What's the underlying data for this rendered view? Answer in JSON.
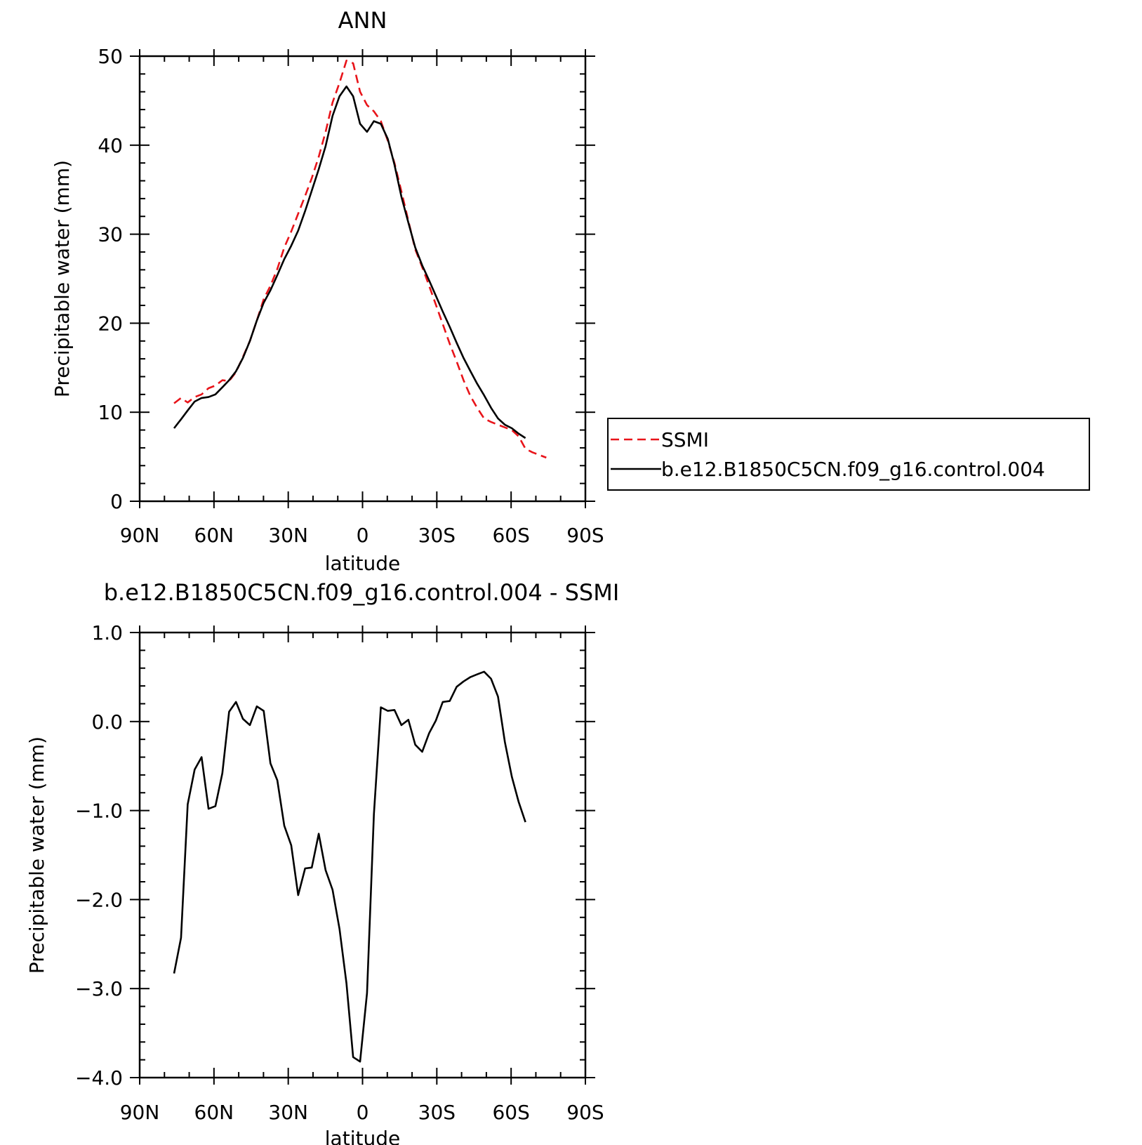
{
  "chart_data": [
    {
      "type": "line",
      "title": "ANN",
      "xlabel": "latitude",
      "ylabel": "Precipitable water (mm)",
      "xlim": [
        90,
        -90
      ],
      "ylim": [
        0,
        50
      ],
      "x_ticks": [
        90,
        60,
        30,
        0,
        -30,
        -60,
        -90
      ],
      "x_tick_labels": [
        "90N",
        "60N",
        "30N",
        "0",
        "30S",
        "60S",
        "90S"
      ],
      "y_ticks": [
        0,
        10,
        20,
        30,
        40,
        50
      ],
      "y_tick_labels": [
        "0",
        "10",
        "20",
        "30",
        "40",
        "50"
      ],
      "legend_position": "right",
      "series": [
        {
          "name": "SSMI",
          "color": "#e8141a",
          "dash": "dashed",
          "x": [
            76.1,
            73.3,
            70.6,
            67.8,
            65.0,
            62.2,
            59.4,
            56.6,
            53.9,
            51.1,
            48.3,
            45.5,
            42.7,
            39.9,
            37.2,
            34.4,
            31.6,
            28.8,
            26.0,
            23.2,
            20.5,
            17.7,
            14.9,
            12.1,
            9.3,
            6.5,
            3.8,
            1.0,
            -1.8,
            -4.6,
            -7.4,
            -10.2,
            -12.9,
            -15.7,
            -18.5,
            -21.3,
            -24.1,
            -26.9,
            -29.6,
            -32.4,
            -35.2,
            -38.0,
            -40.8,
            -43.6,
            -46.3,
            -49.1,
            -51.9,
            -54.7,
            -57.5,
            -60.3,
            -63.0,
            -65.8,
            -68.6,
            -71.4,
            -74.2
          ],
          "y": [
            11.0,
            11.6,
            11.1,
            11.7,
            12.0,
            12.7,
            13.0,
            13.6,
            13.5,
            14.5,
            16.2,
            18.0,
            20.3,
            22.7,
            24.2,
            26.1,
            28.5,
            30.3,
            32.3,
            34.3,
            36.3,
            38.7,
            41.5,
            44.8,
            47.0,
            49.5,
            49.2,
            46.0,
            44.5,
            43.8,
            42.7,
            40.5,
            38.0,
            34.8,
            31.5,
            28.3,
            26.3,
            24.2,
            22.1,
            19.9,
            17.7,
            15.7,
            13.6,
            11.8,
            10.5,
            9.3,
            8.9,
            8.6,
            8.3,
            8.0,
            7.3,
            5.9,
            5.5,
            5.2,
            4.9
          ]
        },
        {
          "name": "b.e12.B1850C5CN.f09_g16.control.004",
          "color": "#000000",
          "dash": "solid",
          "x": [
            76.1,
            73.3,
            70.6,
            67.8,
            65.0,
            62.2,
            59.4,
            56.6,
            53.9,
            51.1,
            48.3,
            45.5,
            42.7,
            39.9,
            37.2,
            34.4,
            31.6,
            28.8,
            26.0,
            23.2,
            20.5,
            17.7,
            14.9,
            12.1,
            9.3,
            6.5,
            3.8,
            1.0,
            -1.8,
            -4.6,
            -7.4,
            -10.2,
            -12.9,
            -15.7,
            -18.5,
            -21.3,
            -24.1,
            -26.9,
            -29.6,
            -32.4,
            -35.2,
            -38.0,
            -40.8,
            -43.6,
            -46.3,
            -49.1,
            -51.9,
            -54.7,
            -57.5,
            -60.3,
            -63.0,
            -65.8
          ],
          "y": [
            8.2,
            9.2,
            10.2,
            11.2,
            11.6,
            11.7,
            12.0,
            12.8,
            13.6,
            14.6,
            16.1,
            18.0,
            20.3,
            22.3,
            23.7,
            25.4,
            27.2,
            28.7,
            30.4,
            32.6,
            34.9,
            37.3,
            39.9,
            43.3,
            45.5,
            46.6,
            45.5,
            42.4,
            41.5,
            42.7,
            42.4,
            40.7,
            37.8,
            34.2,
            31.3,
            28.5,
            26.5,
            24.8,
            23.1,
            21.3,
            19.6,
            17.8,
            16.1,
            14.6,
            13.2,
            11.9,
            10.5,
            9.3,
            8.6,
            8.2,
            7.6,
            7.1
          ]
        }
      ]
    },
    {
      "type": "line",
      "title": "b.e12.B1850C5CN.f09_g16.control.004 - SSMI",
      "xlabel": "latitude",
      "ylabel": "Precipitable water (mm)",
      "xlim": [
        90,
        -90
      ],
      "ylim": [
        -4.0,
        1.0
      ],
      "x_ticks": [
        90,
        60,
        30,
        0,
        -30,
        -60,
        -90
      ],
      "x_tick_labels": [
        "90N",
        "60N",
        "30N",
        "0",
        "30S",
        "60S",
        "90S"
      ],
      "y_ticks": [
        1.0,
        0.0,
        -1.0,
        -2.0,
        -3.0,
        -4.0
      ],
      "y_tick_labels": [
        "1.0",
        "0.0",
        "−1.0",
        "−2.0",
        "−3.0",
        "−4.0"
      ],
      "series": [
        {
          "color": "#000000",
          "dash": "solid",
          "x": [
            76.1,
            73.3,
            70.6,
            67.8,
            65.0,
            62.2,
            59.4,
            56.6,
            53.9,
            51.1,
            48.3,
            45.5,
            42.7,
            39.9,
            37.2,
            34.4,
            31.6,
            28.8,
            26.0,
            23.2,
            20.5,
            17.7,
            14.9,
            12.1,
            9.3,
            6.5,
            3.8,
            1.0,
            -1.8,
            -4.6,
            -7.4,
            -10.2,
            -12.9,
            -15.7,
            -18.5,
            -21.3,
            -24.1,
            -26.9,
            -29.6,
            -32.4,
            -35.2,
            -38.0,
            -40.8,
            -43.6,
            -46.3,
            -49.1,
            -51.9,
            -54.7,
            -57.5,
            -60.3,
            -63.0,
            -65.8
          ],
          "y": [
            -2.83,
            -2.43,
            -0.93,
            -0.54,
            -0.4,
            -0.98,
            -0.95,
            -0.58,
            0.11,
            0.22,
            0.03,
            -0.04,
            0.17,
            0.12,
            -0.47,
            -0.66,
            -1.17,
            -1.39,
            -1.95,
            -1.65,
            -1.64,
            -1.26,
            -1.67,
            -1.89,
            -2.33,
            -2.94,
            -3.77,
            -3.82,
            -3.05,
            -1.04,
            0.16,
            0.12,
            0.13,
            -0.04,
            0.02,
            -0.26,
            -0.34,
            -0.13,
            0.01,
            0.22,
            0.23,
            0.39,
            0.45,
            0.5,
            0.53,
            0.56,
            0.48,
            0.28,
            -0.23,
            -0.62,
            -0.9,
            -1.13
          ]
        }
      ]
    }
  ]
}
